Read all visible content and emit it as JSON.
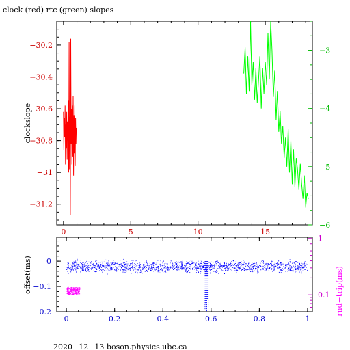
{
  "chart_data": [
    {
      "type": "line",
      "title": "clock (red) rtc (green) slopes",
      "ylabel": "clockslope",
      "xlim": [
        -0.5,
        18.5
      ],
      "ylim_left": [
        -31.33,
        -30.05
      ],
      "ylim_right": [
        -6.0,
        -2.5
      ],
      "x_ticks": [
        0,
        5,
        10,
        15
      ],
      "y_ticks_left": [
        -30.2,
        -30.4,
        -30.6,
        -30.8,
        -31,
        -31.2
      ],
      "y_ticks_left_labels": [
        "−30.2",
        "−30.4",
        "−30.6",
        "−30.8",
        "−31",
        "−31.2"
      ],
      "y_ticks_right": [
        -3,
        -4,
        -5,
        -6
      ],
      "y_ticks_right_labels": [
        "−3",
        "−4",
        "−5",
        "−6"
      ],
      "colors": {
        "frame": "#000000",
        "clock": "#ff0000",
        "rtc": "#00ff00",
        "left_axis": "#cc0000",
        "right_axis": "#00bb00"
      },
      "series": [
        {
          "axis": "left",
          "color": "#ff0000",
          "x": [
            0.0,
            0.03,
            0.06,
            0.09,
            0.12,
            0.15,
            0.18,
            0.21,
            0.24,
            0.27,
            0.3,
            0.33,
            0.36,
            0.39,
            0.42,
            0.45,
            0.48,
            0.51,
            0.54,
            0.57,
            0.6,
            0.63,
            0.66,
            0.69,
            0.72,
            0.75,
            0.78,
            0.81,
            0.84,
            0.87,
            0.9,
            0.93,
            0.96,
            1.0
          ],
          "y": [
            -30.62,
            -30.86,
            -30.66,
            -30.78,
            -30.58,
            -30.95,
            -30.7,
            -30.85,
            -30.62,
            -30.92,
            -30.68,
            -30.8,
            -30.55,
            -31.0,
            -30.18,
            -30.98,
            -30.65,
            -31.27,
            -30.16,
            -30.82,
            -30.6,
            -30.95,
            -30.58,
            -30.9,
            -30.52,
            -31.02,
            -30.64,
            -30.88,
            -30.58,
            -30.96,
            -30.66,
            -30.82,
            -30.72,
            -30.74
          ]
        },
        {
          "axis": "right",
          "color": "#00ff00",
          "x": [
            13.4,
            13.5,
            13.6,
            13.7,
            13.8,
            13.9,
            14.0,
            14.1,
            14.2,
            14.3,
            14.4,
            14.5,
            14.6,
            14.7,
            14.8,
            14.9,
            15.0,
            15.1,
            15.2,
            15.3,
            15.4,
            15.5,
            15.6,
            15.7,
            15.8,
            15.9,
            16.0,
            16.1,
            16.2,
            16.3,
            16.4,
            16.5,
            16.6,
            16.7,
            16.8,
            16.9,
            17.0,
            17.1,
            17.2,
            17.3,
            17.4,
            17.5,
            17.6,
            17.7,
            17.8,
            17.9,
            18.0,
            18.1,
            18.2
          ],
          "y": [
            -3.4,
            -2.95,
            -3.75,
            -3.1,
            -3.7,
            -2.4,
            -3.6,
            -3.2,
            -3.85,
            -3.3,
            -3.9,
            -3.5,
            -3.1,
            -4.0,
            -3.3,
            -3.75,
            -3.2,
            -3.6,
            -2.7,
            -3.5,
            -2.2,
            -3.0,
            -3.8,
            -3.35,
            -4.2,
            -3.7,
            -4.4,
            -4.05,
            -4.6,
            -4.3,
            -4.85,
            -4.5,
            -5.0,
            -4.35,
            -5.1,
            -4.55,
            -5.3,
            -4.7,
            -5.35,
            -4.85,
            -5.05,
            -5.4,
            -4.95,
            -5.3,
            -5.55,
            -5.15,
            -5.7,
            -5.45,
            -5.55
          ]
        }
      ]
    },
    {
      "type": "scatter",
      "ylabel": "offset(ms)",
      "ylabel_right": "rnd−trip(ms)",
      "xlim": [
        -0.04,
        1.02
      ],
      "ylim": [
        -0.2,
        0.095
      ],
      "x_ticks": [
        0,
        0.2,
        0.4,
        0.6,
        0.8,
        1
      ],
      "x_tick_labels": [
        "0",
        "0.2",
        "0.4",
        "0.6",
        "0.8",
        "1"
      ],
      "y_ticks": [
        0,
        -0.1,
        -0.2
      ],
      "y_tick_labels": [
        "0",
        "−0.1",
        "−0.2"
      ],
      "right_scale": "log",
      "ylim_right": [
        0.05,
        1.05
      ],
      "right_ticks": [
        1,
        0.1
      ],
      "right_tick_labels": [
        "1",
        "0.1"
      ],
      "colors": {
        "frame": "#000000",
        "offset": "#0000ff",
        "rndtrip": "#ff00ff",
        "left_axis": "#0000cc",
        "right_axis": "#cc00cc"
      },
      "series": [
        {
          "name_hidden": true,
          "kind": "offset-band",
          "color": "#0000ff",
          "x_range": [
            0.0,
            1.0
          ],
          "center": -0.02,
          "spread": 0.022
        },
        {
          "name_hidden": true,
          "kind": "rndtrip-cluster",
          "color": "#ff00ff",
          "x_range": [
            0.0,
            0.055
          ],
          "center": 0.12,
          "spread": 0.035
        },
        {
          "name_hidden": true,
          "kind": "offset-spike",
          "color": "#0000ff",
          "x": [
            0.575,
            0.578,
            0.582,
            0.585,
            0.588
          ],
          "y": [
            -0.19,
            -0.17,
            -0.2,
            -0.15,
            -0.18
          ]
        }
      ]
    }
  ],
  "footer": "2020−12−13  boson.physics.ubc.ca"
}
